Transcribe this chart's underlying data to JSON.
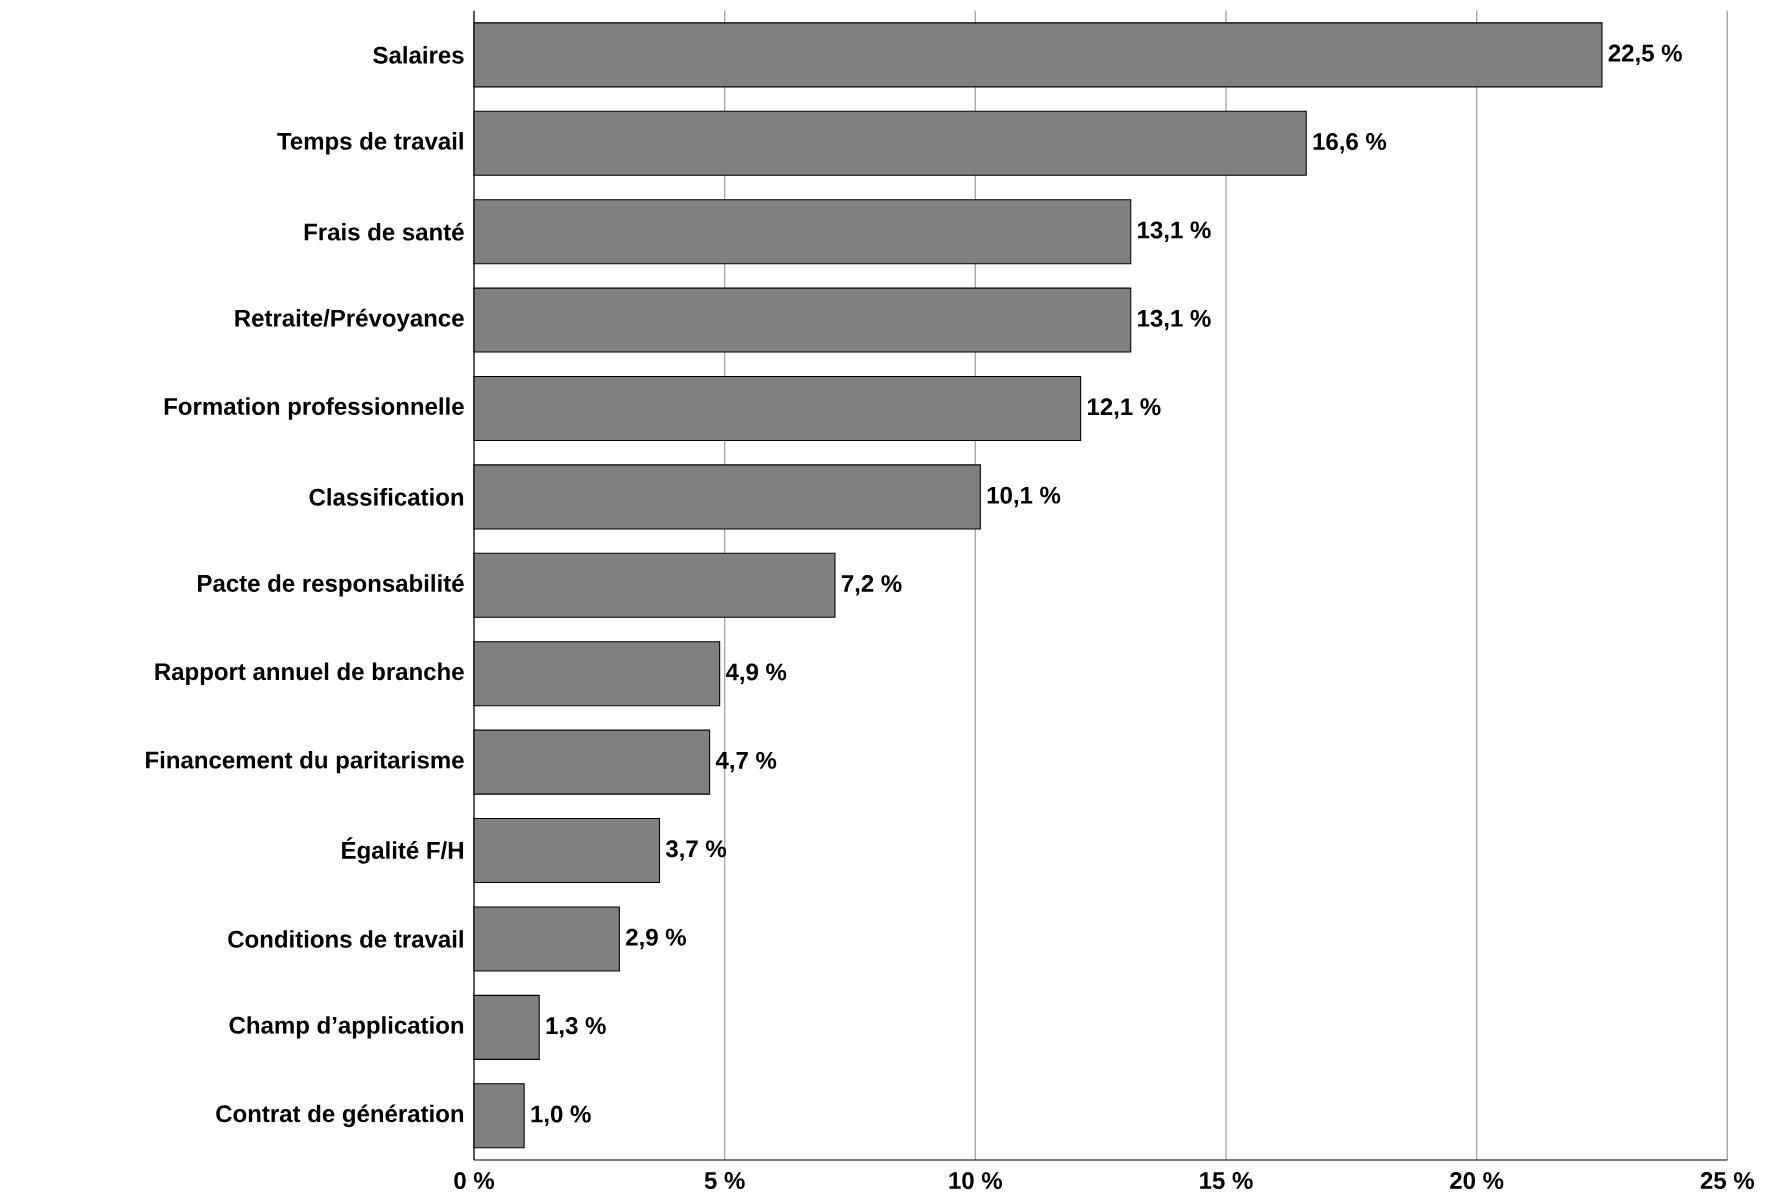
{
  "chart_data": {
    "type": "bar",
    "orientation": "horizontal",
    "categories": [
      "Salaires",
      "Temps de travail",
      "Frais de santé",
      "Retraite/Prévoyance",
      "Formation professionnelle",
      "Classification",
      "Pacte de responsabilité",
      "Rapport annuel de branche",
      "Financement du paritarisme",
      "Égalité F/H",
      "Conditions de travail",
      "Champ d’application",
      "Contrat de génération"
    ],
    "values": [
      22.5,
      16.6,
      13.1,
      13.1,
      12.1,
      10.1,
      7.2,
      4.9,
      4.7,
      3.7,
      2.9,
      1.3,
      1.0
    ],
    "value_labels": [
      "22,5 %",
      "16,6 %",
      "13,1 %",
      "13,1 %",
      "12,1 %",
      "10,1 %",
      "7,2 %",
      "4,9 %",
      "4,7 %",
      "3,7 %",
      "2,9 %",
      "1,3 %",
      "1,0 %"
    ],
    "color": "#808080",
    "xlim": [
      0,
      25
    ],
    "xticks": [
      {
        "value": 0,
        "label": "0 %"
      },
      {
        "value": 5,
        "label": "5 %"
      },
      {
        "value": 10,
        "label": "10 %"
      },
      {
        "value": 15,
        "label": "15 %"
      },
      {
        "value": 20,
        "label": "20 %"
      },
      {
        "value": 25,
        "label": "25 %"
      }
    ],
    "grid": "x"
  }
}
